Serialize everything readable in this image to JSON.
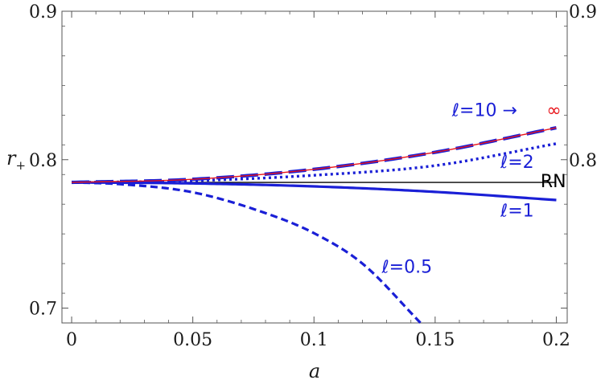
{
  "chart_data": {
    "type": "line",
    "title": "",
    "xlabel": "a",
    "ylabel": "r",
    "ylabel_sub": "+",
    "xlim": [
      -0.004,
      0.2045
    ],
    "ylim": [
      0.69,
      0.9
    ],
    "x_ticks": [
      {
        "value": 0,
        "label": "0"
      },
      {
        "value": 0.05,
        "label": "0.05"
      },
      {
        "value": 0.1,
        "label": "0.1"
      },
      {
        "value": 0.15,
        "label": "0.15"
      },
      {
        "value": 0.2,
        "label": "0.2"
      }
    ],
    "y_ticks": [
      {
        "value": 0.7,
        "label": "0.7"
      },
      {
        "value": 0.8,
        "label": "0.8"
      },
      {
        "value": 0.9,
        "label": "0.9"
      }
    ],
    "right_y_ticks": [
      {
        "value": 0.8,
        "label": "0.8"
      },
      {
        "value": 0.9,
        "label": "0.9"
      }
    ],
    "grid": false,
    "colors": {
      "blue": "#1a1fd6",
      "red": "#e8141a",
      "black": "#000000",
      "frame": "#555555"
    },
    "series": [
      {
        "name": "RN",
        "color": "#000000",
        "style": "solid",
        "x": [
          0,
          0.2
        ],
        "y": [
          0.7847,
          0.7847
        ]
      },
      {
        "name": "ℓ=1",
        "color": "#1a1fd6",
        "style": "solid",
        "x": [
          0,
          0.05,
          0.1,
          0.15,
          0.2
        ],
        "y": [
          0.7847,
          0.784,
          0.782,
          0.7783,
          0.7728
        ]
      },
      {
        "name": "ℓ=2",
        "color": "#1a1fd6",
        "style": "dotted",
        "x": [
          0,
          0.05,
          0.1,
          0.15,
          0.2
        ],
        "y": [
          0.7847,
          0.7858,
          0.7895,
          0.796,
          0.8108
        ]
      },
      {
        "name": "ℓ=10",
        "color": "#1a1fd6",
        "style": "longdash",
        "x": [
          0,
          0.05,
          0.1,
          0.15,
          0.2
        ],
        "y": [
          0.7847,
          0.7868,
          0.7935,
          0.805,
          0.8215
        ]
      },
      {
        "name": "∞",
        "color": "#e8141a",
        "style": "solid-thin",
        "x": [
          0,
          0.05,
          0.1,
          0.15,
          0.2
        ],
        "y": [
          0.7847,
          0.7868,
          0.7935,
          0.805,
          0.8215
        ]
      },
      {
        "name": "ℓ=0.5",
        "color": "#1a1fd6",
        "style": "dashed",
        "x": [
          0,
          0.02,
          0.05,
          0.08,
          0.1,
          0.12,
          0.144
        ],
        "y": [
          0.7847,
          0.7835,
          0.778,
          0.764,
          0.7505,
          0.73,
          0.69
        ]
      }
    ],
    "labels": [
      {
        "text": "ℓ=10 →",
        "color": "#1a1fd6",
        "x": 0.157,
        "y": 0.8295
      },
      {
        "text": "∞",
        "color": "#e8141a",
        "x": 0.196,
        "y": 0.8295
      },
      {
        "text": "ℓ=2",
        "color": "#1a1fd6",
        "x": 0.177,
        "y": 0.7945
      },
      {
        "text": "RN",
        "color": "#000000",
        "x": 0.1935,
        "y": 0.7815
      },
      {
        "text": "ℓ=1",
        "color": "#1a1fd6",
        "x": 0.177,
        "y": 0.7618
      },
      {
        "text": "ℓ=0.5",
        "color": "#1a1fd6",
        "x": 0.128,
        "y": 0.7238
      }
    ]
  }
}
